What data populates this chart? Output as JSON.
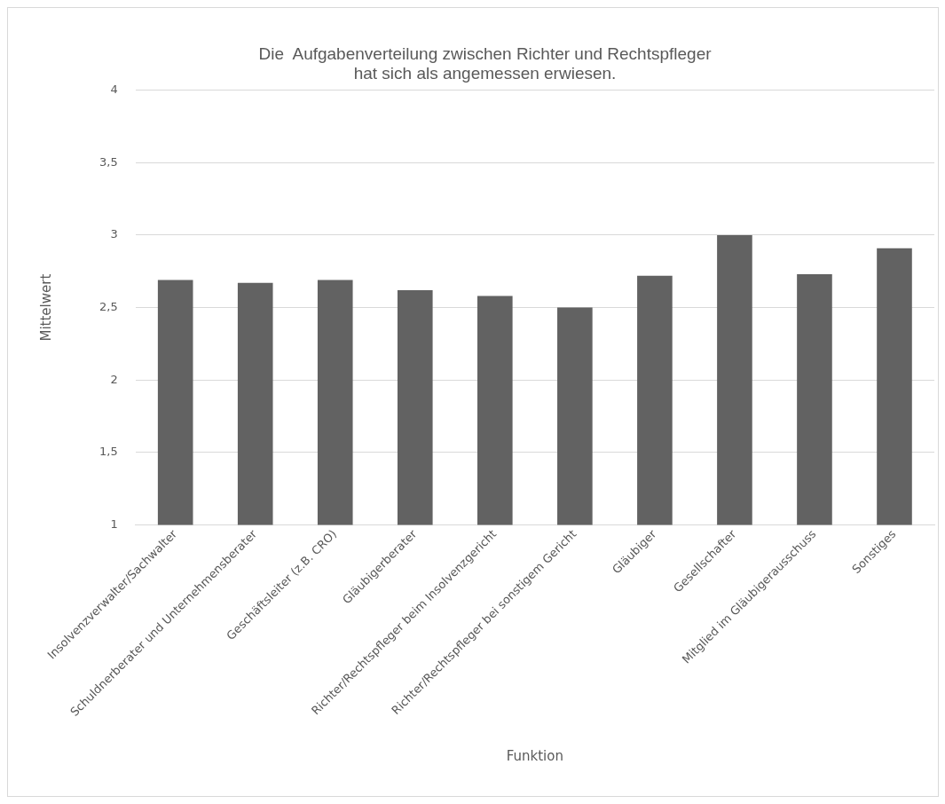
{
  "chart_data": {
    "type": "bar",
    "title": [
      "Die  Aufgabenverteilung zwischen Richter und Rechtspfleger",
      "hat sich als angemessen erwiesen."
    ],
    "xlabel": "Funktion",
    "ylabel": "Mittelwert",
    "categories": [
      "Insolvenzverwalter/Sachwalter",
      "Schuldnerberater und Unternehmensberater",
      "Geschäftsleiter (z.B. CRO)",
      "Gläubigerberater",
      "Richter/Rechtspfleger beim Insolvenzgericht",
      "Richter/Rechtspfleger bei sonstigem Gericht",
      "Gläubiger",
      "Gesellschafter",
      "Mitglied im Gläubigerausschuss",
      "Sonstiges"
    ],
    "values": [
      2.69,
      2.67,
      2.69,
      2.62,
      2.58,
      2.5,
      2.72,
      3.0,
      2.73,
      2.91
    ],
    "color": "#626262",
    "ylim": [
      1,
      4
    ],
    "yticks": [
      {
        "value": 1,
        "label": "1"
      },
      {
        "value": 1.5,
        "label": "1,5"
      },
      {
        "value": 2,
        "label": "2"
      },
      {
        "value": 2.5,
        "label": "2,5"
      },
      {
        "value": 3,
        "label": "3"
      },
      {
        "value": 3.5,
        "label": "3,5"
      },
      {
        "value": 4,
        "label": "4"
      }
    ],
    "grid": "y"
  }
}
